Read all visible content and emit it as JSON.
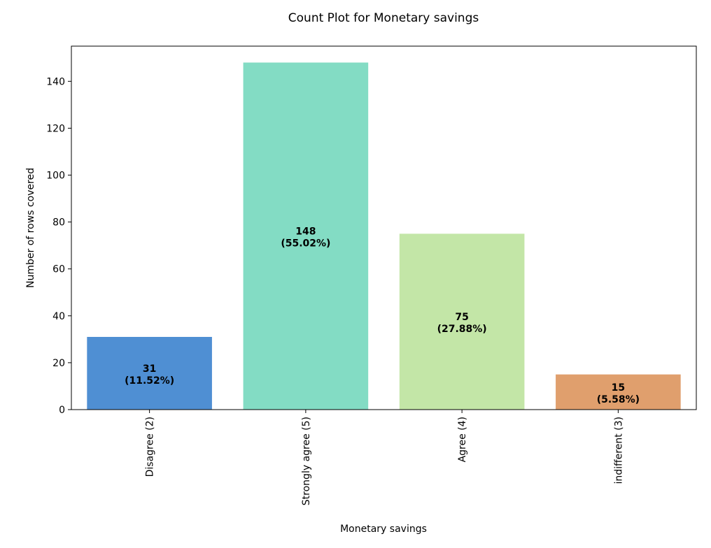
{
  "chart_data": {
    "type": "bar",
    "title": "Count Plot for Monetary savings",
    "xlabel": "Monetary savings",
    "ylabel": "Number of rows covered",
    "categories": [
      "Disagree (2)",
      "Strongly agree (5)",
      "Agree (4)",
      "indifferent (3)"
    ],
    "values": [
      31,
      148,
      75,
      15
    ],
    "percent_labels": [
      "(11.52%)",
      "(55.02%)",
      "(27.88%)",
      "(5.58%)"
    ],
    "colors": [
      "#4f8fd3",
      "#83dcc4",
      "#c3e6a7",
      "#e09f6d"
    ],
    "ylim": [
      0,
      155
    ],
    "yticks": [
      0,
      20,
      40,
      60,
      80,
      100,
      120,
      140
    ],
    "grid": false,
    "legend": "none"
  }
}
